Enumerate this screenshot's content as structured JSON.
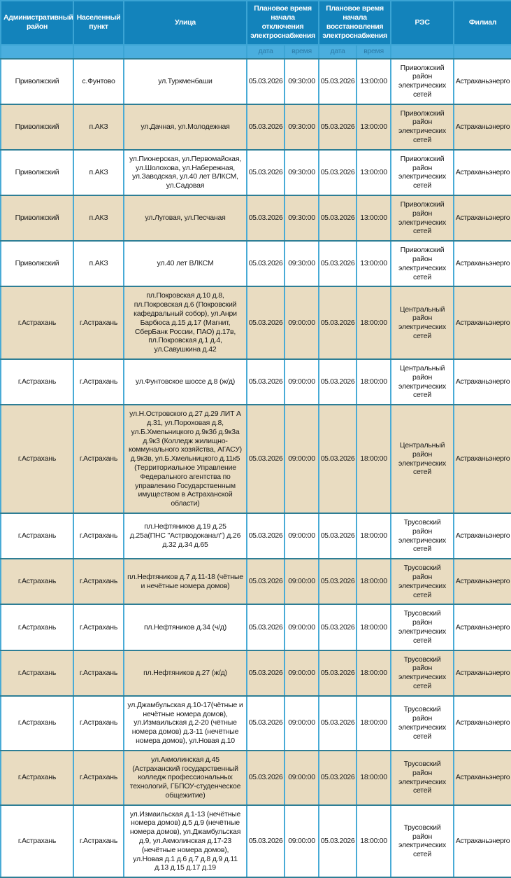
{
  "colors": {
    "header_bg": "#1383bb",
    "header_text": "#ffffff",
    "subheader_bg": "#4aaede",
    "subheader_text": "#2d7ca8",
    "row_bg_white": "#ffffff",
    "row_bg_beige": "#e9dcc1",
    "grid_vertical": "#49abd6",
    "grid_horizontal": "#2e7e95",
    "body_text": "#1a1a1a"
  },
  "table": {
    "columns": {
      "admin_district": "Административный район",
      "settlement": "Населенный пункт",
      "street": "Улица",
      "outage_group": "Плановое время начала отключения электроснабжения",
      "restore_group": "Плановое время начала восстановления электроснабжения",
      "res": "РЭС",
      "branch": "Филиал"
    },
    "subcolumns": {
      "date": "дата",
      "time": "время"
    },
    "rows": [
      {
        "district": "Приволжский",
        "settlement": "с.Фунтово",
        "street": "ул.Туркменбаши",
        "off_date": "05.03.2026",
        "off_time": "09:30:00",
        "on_date": "05.03.2026",
        "on_time": "13:00:00",
        "res": "Приволжский район электрических сетей",
        "branch": "Астраханьэнерго"
      },
      {
        "district": "Приволжский",
        "settlement": "п.АКЗ",
        "street": "ул.Дачная, ул.Молодежная",
        "off_date": "05.03.2026",
        "off_time": "09:30:00",
        "on_date": "05.03.2026",
        "on_time": "13:00:00",
        "res": "Приволжский район электрических сетей",
        "branch": "Астраханьэнерго"
      },
      {
        "district": "Приволжский",
        "settlement": "п.АКЗ",
        "street": "ул.Пионерская, ул.Первомайская, ул.Шолохова, ул.Набережная, ул.Заводская, ул.40 лет ВЛКСМ, ул.Садовая",
        "off_date": "05.03.2026",
        "off_time": "09:30:00",
        "on_date": "05.03.2026",
        "on_time": "13:00:00",
        "res": "Приволжский район электрических сетей",
        "branch": "Астраханьэнерго"
      },
      {
        "district": "Приволжский",
        "settlement": "п.АКЗ",
        "street": "ул.Луговая, ул.Песчаная",
        "off_date": "05.03.2026",
        "off_time": "09:30:00",
        "on_date": "05.03.2026",
        "on_time": "13:00:00",
        "res": "Приволжский район электрических сетей",
        "branch": "Астраханьэнерго"
      },
      {
        "district": "Приволжский",
        "settlement": "п.АКЗ",
        "street": "ул.40 лет ВЛКСМ",
        "off_date": "05.03.2026",
        "off_time": "09:30:00",
        "on_date": "05.03.2026",
        "on_time": "13:00:00",
        "res": "Приволжский район электрических сетей",
        "branch": "Астраханьэнерго"
      },
      {
        "district": "г.Астрахань",
        "settlement": "г.Астрахань",
        "street": "пл.Покровская д.10 д.8, пл.Покровская д.6 (Покровский кафедральный собор), ул.Анри Барбюса д.15 д.17 (Магнит, СберБанк России, ПАО) д.17в, пл.Покровская д.1 д.4, ул.Савушкина д.42",
        "off_date": "05.03.2026",
        "off_time": "09:00:00",
        "on_date": "05.03.2026",
        "on_time": "18:00:00",
        "res": "Центральный район электрических сетей",
        "branch": "Астраханьэнерго"
      },
      {
        "district": "г.Астрахань",
        "settlement": "г.Астрахань",
        "street": "ул.Фунтовское шоссе д.8 (ж/д)",
        "off_date": "05.03.2026",
        "off_time": "09:00:00",
        "on_date": "05.03.2026",
        "on_time": "18:00:00",
        "res": "Центральный район электрических сетей",
        "branch": "Астраханьэнерго"
      },
      {
        "district": "г.Астрахань",
        "settlement": "г.Астрахань",
        "street": "ул.Н.Островского д.27 д.29 ЛИТ А д.31, ул.Пороховая д.8, ул.Б.Хмельницкого д.9к3б д.9к3а д.9к3 (Колледж жилищно-коммунального хозяйства, АГАСУ) д.9к3в, ул.Б.Хмельницкого д.11к5 (Территориальное Управление Федерального агентства по управлению Государственным имуществом в Астраханской области)",
        "off_date": "05.03.2026",
        "off_time": "09:00:00",
        "on_date": "05.03.2026",
        "on_time": "18:00:00",
        "res": "Центральный район электрических сетей",
        "branch": "Астраханьэнерго"
      },
      {
        "district": "г.Астрахань",
        "settlement": "г.Астрахань",
        "street": "пл.Нефтяников д.19 д.25 д.25а(ПНС \"Астрводоканал\") д.26 д.32 д.34 д.65",
        "off_date": "05.03.2026",
        "off_time": "09:00:00",
        "on_date": "05.03.2026",
        "on_time": "18:00:00",
        "res": "Трусовский район электрических сетей",
        "branch": "Астраханьэнерго"
      },
      {
        "district": "г.Астрахань",
        "settlement": "г.Астрахань",
        "street": "пл.Нефтяников д.7 д.11-18 (чётные и нечётные номера домов)",
        "off_date": "05.03.2026",
        "off_time": "09:00:00",
        "on_date": "05.03.2026",
        "on_time": "18:00:00",
        "res": "Трусовский район электрических сетей",
        "branch": "Астраханьэнерго"
      },
      {
        "district": "г.Астрахань",
        "settlement": "г.Астрахань",
        "street": "пл.Нефтяников д.34 (ч/д)",
        "off_date": "05.03.2026",
        "off_time": "09:00:00",
        "on_date": "05.03.2026",
        "on_time": "18:00:00",
        "res": "Трусовский район электрических сетей",
        "branch": "Астраханьэнерго"
      },
      {
        "district": "г.Астрахань",
        "settlement": "г.Астрахань",
        "street": "пл.Нефтяников д.27 (ж/д)",
        "off_date": "05.03.2026",
        "off_time": "09:00:00",
        "on_date": "05.03.2026",
        "on_time": "18:00:00",
        "res": "Трусовский район электрических сетей",
        "branch": "Астраханьэнерго"
      },
      {
        "district": "г.Астрахань",
        "settlement": "г.Астрахань",
        "street": "ул.Джамбульская д.10-17(чётные и нечётные номера домов), ул.Измаильская д.2-20 (чётные номера домов) д.3-11 (нечётные номера домов), ул.Новая д.10",
        "off_date": "05.03.2026",
        "off_time": "09:00:00",
        "on_date": "05.03.2026",
        "on_time": "18:00:00",
        "res": "Трусовский район электрических сетей",
        "branch": "Астраханьэнерго"
      },
      {
        "district": "г.Астрахань",
        "settlement": "г.Астрахань",
        "street": "ул.Акмолинская д.45 (Астраханский государственный колледж профессиональных технологий, ГБПОУ-студенческое общежитие)",
        "off_date": "05.03.2026",
        "off_time": "09:00:00",
        "on_date": "05.03.2026",
        "on_time": "18:00:00",
        "res": "Трусовский район электрических сетей",
        "branch": "Астраханьэнерго"
      },
      {
        "district": "г.Астрахань",
        "settlement": "г.Астрахань",
        "street": "ул.Измаильская д.1-13 (нечётные номера домов) д.5 д.9 (нечётные номера домов), ул.Джамбульская д.9, ул.Акмолинская д.17-23 (нечётные номера домов), ул.Новая д.1 д.6 д.7 д.8 д.9 д.11 д.13 д.15 д.17 д.19",
        "off_date": "05.03.2026",
        "off_time": "09:00:00",
        "on_date": "05.03.2026",
        "on_time": "18:00:00",
        "res": "Трусовский район электрических сетей",
        "branch": "Астраханьэнерго"
      }
    ]
  }
}
